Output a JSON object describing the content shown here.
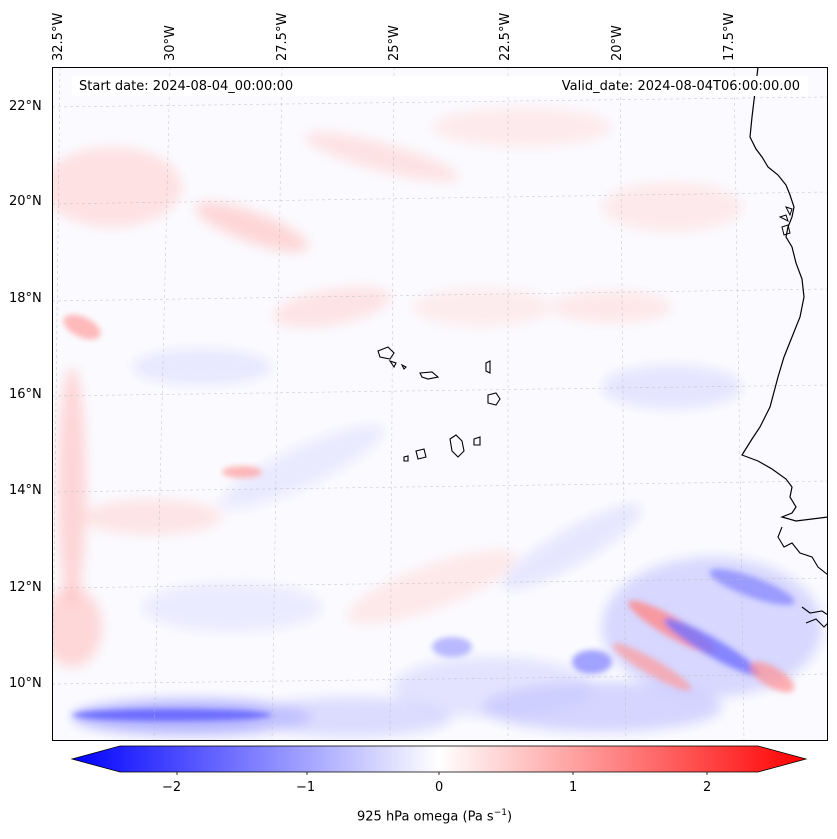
{
  "map": {
    "start_label": "Start date: 2024-08-04_00:00:00",
    "valid_label": "Valid_date: 2024-08-04T06:00:00.00",
    "lon_ticks": [
      "32.5°W",
      "30°W",
      "27.5°W",
      "25°W",
      "22.5°W",
      "20°W",
      "17.5°W"
    ],
    "lat_ticks": [
      "22°N",
      "20°N",
      "18°N",
      "16°N",
      "14°N",
      "12°N",
      "10°N"
    ],
    "colors": {
      "negative": "#0000ff",
      "zero": "#ffffff",
      "positive": "#ff0000",
      "coastline": "#000000"
    }
  },
  "colorbar": {
    "ticks": [
      "−2",
      "−1",
      "0",
      "1",
      "2"
    ],
    "label": "925 hPa omega (Pa s",
    "label_sup": "−1",
    "label_end": ")"
  }
}
